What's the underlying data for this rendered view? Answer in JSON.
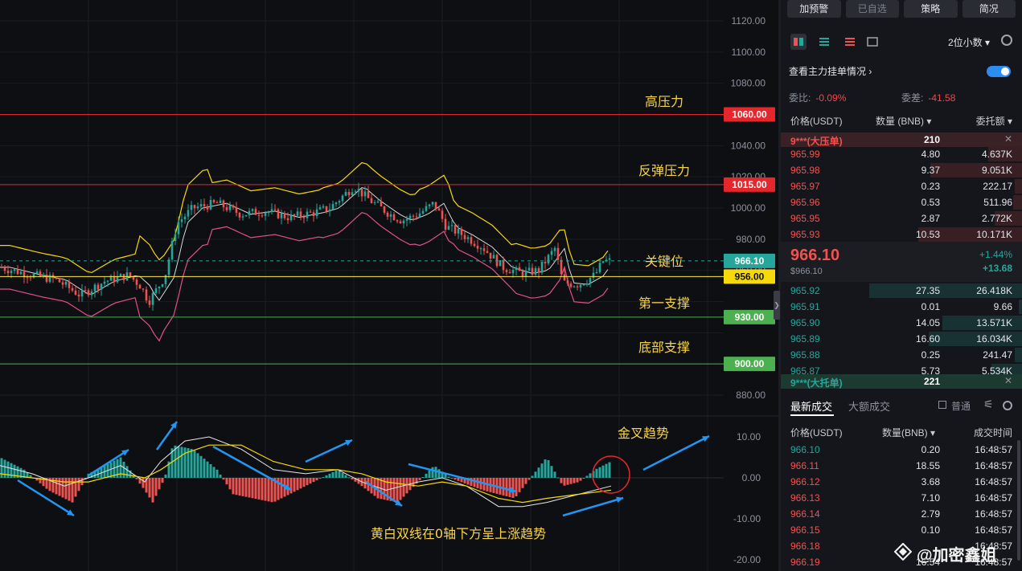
{
  "chart_data": [
    {
      "type": "candlestick",
      "panel": "price",
      "yaxis_ticks": [
        1120,
        1100,
        1080,
        1060,
        1040,
        1020,
        1000,
        980,
        960,
        940,
        920,
        900,
        880
      ],
      "yaxis_labels": [
        "1120.00",
        "1100.00",
        "1080.00",
        "",
        "1040.00",
        "1020.00",
        "1000.00",
        "980.00",
        "960.00",
        "",
        "",
        "",
        "880.00"
      ],
      "ylim": [
        869,
        1129
      ],
      "xlim": [
        0,
        195
      ],
      "bollinger": {
        "upper": [
          [
            0,
            963
          ],
          [
            10,
            964
          ],
          [
            20,
            962
          ],
          [
            30,
            964
          ],
          [
            40,
            970
          ],
          [
            50,
            978
          ],
          [
            54,
            987
          ],
          [
            60,
            988
          ],
          [
            66,
            1003
          ],
          [
            70,
            1013
          ],
          [
            75,
            1019
          ],
          [
            80,
            1007
          ],
          [
            90,
            1004
          ],
          [
            110,
            1006
          ],
          [
            120,
            1008
          ],
          [
            130,
            1010
          ],
          [
            140,
            1015
          ],
          [
            150,
            1020
          ],
          [
            155,
            1022
          ],
          [
            163,
            1010
          ],
          [
            175,
            1004
          ],
          [
            185,
            988
          ],
          [
            193,
            979
          ],
          [
            200,
            976
          ],
          [
            210,
            977
          ],
          [
            218,
            975
          ],
          [
            222,
            974
          ],
          [
            228,
            972
          ],
          [
            234,
            969
          ],
          [
            238,
            970
          ],
          [
            243,
            971
          ],
          [
            247,
            974
          ],
          [
            252,
            975
          ],
          [
            260,
            976
          ],
          [
            270,
            976
          ],
          [
            280,
            976
          ],
          [
            285,
            976
          ],
          [
            290,
            975
          ],
          [
            298,
            975
          ],
          [
            306,
            974
          ],
          [
            310,
            973
          ],
          [
            318,
            971
          ]
        ]
      },
      "candles_count": 190,
      "candle_summary": "green/red OHLC bars"
    },
    {
      "type": "bar",
      "panel": "macd",
      "yaxis_ticks": [
        10,
        0,
        -10,
        -20
      ],
      "yaxis_labels": [
        "10.00",
        "0.00",
        "-10.00",
        "-20.00"
      ],
      "ylim": [
        -21.5,
        13
      ]
    }
  ],
  "levels": [
    {
      "label": "1060.00",
      "value": 1060,
      "color": "#e5262b",
      "badge_color": "#e5262b",
      "name": "高压力"
    },
    {
      "label": "1015.00",
      "value": 1015,
      "color": "#e5262b",
      "badge_color": "#e5262b",
      "name": "反弹压力"
    },
    {
      "label": "966.10",
      "value": 966.1,
      "color": "#26a69a",
      "badge_color": "#26a69a",
      "name": "关键位",
      "dashed": true
    },
    {
      "label": "956.00",
      "value": 956,
      "color": "#ffeb3b",
      "badge_color": "#f5d90a",
      "name": ""
    },
    {
      "label": "930.00",
      "value": 930,
      "color": "#4caf50",
      "badge_color": "#4caf50",
      "name": "第一支撑"
    },
    {
      "label": "900.00",
      "value": 900,
      "color": "#4caf50",
      "badge_color": "#4caf50",
      "name": "底部支撑"
    }
  ],
  "annotations": {
    "golden_cross": "金叉趋势",
    "macd_note": "黄白双线在0轴下方呈上涨趋势"
  },
  "panel": {
    "buttons": [
      "加预警",
      "已自选",
      "策略",
      "简况"
    ],
    "decimals": "2位小数",
    "view_main": "查看主力挂单情况",
    "ratio_label": "委比:",
    "ratio_value": "-0.09%",
    "diff_label": "委差:",
    "diff_value": "-41.58",
    "col_price": "价格(USDT)",
    "col_qty": "数量 (BNB)",
    "col_total": "委托额",
    "sell_big_label": "9***(大压单)",
    "sell_big_value": "210",
    "buy_big_label": "9***(大托单)",
    "buy_big_value": "221",
    "asks": [
      {
        "price": "965.99",
        "qty": "4.80",
        "total": "4.637K",
        "depth": 0.22
      },
      {
        "price": "965.98",
        "qty": "9.37",
        "total": "9.051K",
        "depth": 0.6
      },
      {
        "price": "965.97",
        "qty": "0.23",
        "total": "222.17",
        "depth": 0.05
      },
      {
        "price": "965.96",
        "qty": "0.53",
        "total": "511.96",
        "depth": 0.06
      },
      {
        "price": "965.95",
        "qty": "2.87",
        "total": "2.772K",
        "depth": 0.18
      },
      {
        "price": "965.93",
        "qty": "10.53",
        "total": "10.171K",
        "depth": 0.68
      }
    ],
    "last_price": "966.10",
    "last_price_sub": "$966.10",
    "change_pct": "+1.44%",
    "change_abs": "+13.68",
    "bids": [
      {
        "price": "965.92",
        "qty": "27.35",
        "total": "26.418K",
        "depth": 1.0
      },
      {
        "price": "965.91",
        "qty": "0.01",
        "total": "9.66",
        "depth": 0.02
      },
      {
        "price": "965.90",
        "qty": "14.05",
        "total": "13.571K",
        "depth": 0.52
      },
      {
        "price": "965.89",
        "qty": "16.60",
        "total": "16.034K",
        "depth": 0.61
      },
      {
        "price": "965.88",
        "qty": "0.25",
        "total": "241.47",
        "depth": 0.05
      },
      {
        "price": "965.87",
        "qty": "5.73",
        "total": "5.534K",
        "depth": 0.2
      }
    ],
    "tab_latest": "最新成交",
    "tab_large": "大额成交",
    "normal_label": "普通",
    "tcol_price": "价格(USDT)",
    "tcol_qty": "数量(BNB)",
    "tcol_time": "成交时间",
    "trades": [
      {
        "price": "966.10",
        "qty": "0.20",
        "time": "16:48:57",
        "side": "buy"
      },
      {
        "price": "966.11",
        "qty": "18.55",
        "time": "16:48:57",
        "side": "sell"
      },
      {
        "price": "966.12",
        "qty": "3.68",
        "time": "16:48:57",
        "side": "sell"
      },
      {
        "price": "966.13",
        "qty": "7.10",
        "time": "16:48:57",
        "side": "sell"
      },
      {
        "price": "966.14",
        "qty": "2.79",
        "time": "16:48:57",
        "side": "sell"
      },
      {
        "price": "966.15",
        "qty": "0.10",
        "time": "16:48:57",
        "side": "sell"
      },
      {
        "price": "966.18",
        "qty": "",
        "time": "16:48:57",
        "side": "sell"
      },
      {
        "price": "966.19",
        "qty": "16.54",
        "time": "16:48:57",
        "side": "sell"
      }
    ],
    "watermark": "@加密鑫姐"
  },
  "colors": {
    "up": "#26a69a",
    "down": "#ef5350",
    "accent_blue": "#2d8cf0",
    "annotation_yellow": "#f7d44a"
  }
}
